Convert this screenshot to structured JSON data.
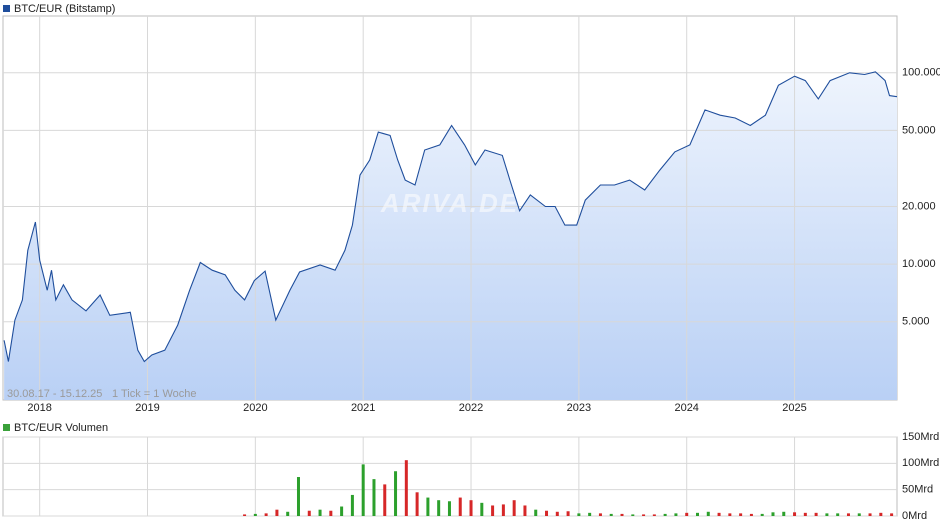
{
  "chart_data": [
    {
      "type": "area",
      "title": "BTC/EUR (Bitstamp)",
      "color": "#1f4e9c",
      "log_scale": true,
      "grid": true,
      "date_range": "30.08.17 - 15.12.25",
      "tick_note": "1 Tick = 1 Woche",
      "watermark": "ARIVA.DE",
      "xlim": [
        2017.66,
        2025.95
      ],
      "xticks": [
        2018,
        2019,
        2020,
        2021,
        2022,
        2023,
        2024,
        2025
      ],
      "ylim": [
        1950,
        198000
      ],
      "yticks": [
        {
          "value": 5000,
          "label": "5.000"
        },
        {
          "value": 10000,
          "label": "10.000"
        },
        {
          "value": 20000,
          "label": "20.000"
        },
        {
          "value": 50000,
          "label": "50.000"
        },
        {
          "value": 100000,
          "label": "100.000"
        }
      ],
      "x": [
        2017.67,
        2017.71,
        2017.77,
        2017.84,
        2017.89,
        2017.96,
        2018.0,
        2018.07,
        2018.11,
        2018.15,
        2018.22,
        2018.3,
        2018.43,
        2018.56,
        2018.65,
        2018.84,
        2018.91,
        2018.97,
        2019.04,
        2019.16,
        2019.28,
        2019.39,
        2019.49,
        2019.6,
        2019.72,
        2019.81,
        2019.9,
        2019.99,
        2020.09,
        2020.19,
        2020.32,
        2020.41,
        2020.6,
        2020.74,
        2020.83,
        2020.9,
        2020.97,
        2021.06,
        2021.14,
        2021.25,
        2021.32,
        2021.39,
        2021.48,
        2021.57,
        2021.71,
        2021.82,
        2021.94,
        2022.04,
        2022.13,
        2022.29,
        2022.36,
        2022.45,
        2022.55,
        2022.69,
        2022.78,
        2022.87,
        2022.98,
        2023.06,
        2023.2,
        2023.33,
        2023.47,
        2023.61,
        2023.75,
        2023.89,
        2024.03,
        2024.17,
        2024.31,
        2024.45,
        2024.59,
        2024.73,
        2024.85,
        2025.0,
        2025.1,
        2025.22,
        2025.33,
        2025.51,
        2025.65,
        2025.75,
        2025.84,
        2025.88,
        2025.95
      ],
      "values": [
        4000,
        3100,
        5100,
        6500,
        11800,
        16600,
        10500,
        7300,
        9300,
        6500,
        7800,
        6500,
        5700,
        6900,
        5400,
        5600,
        3550,
        3100,
        3350,
        3550,
        4800,
        7300,
        10200,
        9300,
        8800,
        7300,
        6500,
        8200,
        9200,
        5100,
        7300,
        9100,
        9900,
        9300,
        11800,
        16000,
        29200,
        35000,
        49000,
        47000,
        35000,
        27500,
        25900,
        39500,
        42000,
        53000,
        42000,
        33000,
        39500,
        37000,
        27500,
        19000,
        23000,
        20000,
        20000,
        16000,
        16000,
        21600,
        25900,
        25900,
        27500,
        24400,
        31000,
        38600,
        42000,
        64000,
        60000,
        58000,
        53000,
        60000,
        86000,
        96000,
        91000,
        73000,
        91000,
        100000,
        98000,
        101000,
        91000,
        76000,
        75000
      ]
    },
    {
      "type": "bar",
      "title": "BTC/EUR Volumen",
      "grid": true,
      "xlim": [
        2017.66,
        2025.95
      ],
      "xticks": [
        2018,
        2019,
        2020,
        2021,
        2022,
        2023,
        2024,
        2025
      ],
      "ylim": [
        0,
        150
      ],
      "yticks": [
        {
          "value": 0,
          "label": "0Mrd"
        },
        {
          "value": 50,
          "label": "50Mrd"
        },
        {
          "value": 100,
          "label": "100Mrd"
        },
        {
          "value": 150,
          "label": "150Mrd"
        }
      ],
      "x": [
        2019.9,
        2020.0,
        2020.1,
        2020.2,
        2020.3,
        2020.4,
        2020.5,
        2020.6,
        2020.7,
        2020.8,
        2020.9,
        2021.0,
        2021.1,
        2021.2,
        2021.3,
        2021.4,
        2021.5,
        2021.6,
        2021.7,
        2021.8,
        2021.9,
        2022.0,
        2022.1,
        2022.2,
        2022.3,
        2022.4,
        2022.5,
        2022.6,
        2022.7,
        2022.8,
        2022.9,
        2023.0,
        2023.1,
        2023.2,
        2023.3,
        2023.4,
        2023.5,
        2023.6,
        2023.7,
        2023.8,
        2023.9,
        2024.0,
        2024.1,
        2024.2,
        2024.3,
        2024.4,
        2024.5,
        2024.6,
        2024.7,
        2024.8,
        2024.9,
        2025.0,
        2025.1,
        2025.2,
        2025.3,
        2025.4,
        2025.5,
        2025.6,
        2025.7,
        2025.8,
        2025.9
      ],
      "values": [
        3,
        4,
        5,
        12,
        8,
        74,
        10,
        12,
        10,
        18,
        40,
        98,
        70,
        60,
        85,
        106,
        45,
        35,
        30,
        28,
        35,
        30,
        25,
        20,
        22,
        30,
        20,
        12,
        10,
        8,
        9,
        5,
        6,
        5,
        4,
        4,
        3,
        3,
        3,
        4,
        5,
        6,
        6,
        8,
        6,
        5,
        5,
        4,
        4,
        7,
        8,
        7,
        6,
        6,
        5,
        5,
        5,
        5,
        5,
        6,
        5
      ],
      "colors": [
        "#d62728",
        "#2ca02c",
        "#d62728",
        "#d62728",
        "#2ca02c",
        "#2ca02c",
        "#d62728",
        "#2ca02c",
        "#d62728",
        "#2ca02c",
        "#2ca02c",
        "#2ca02c",
        "#2ca02c",
        "#d62728",
        "#2ca02c",
        "#d62728",
        "#d62728",
        "#2ca02c",
        "#2ca02c",
        "#2ca02c",
        "#d62728",
        "#d62728",
        "#2ca02c",
        "#d62728",
        "#d62728",
        "#d62728",
        "#d62728",
        "#2ca02c",
        "#d62728",
        "#d62728",
        "#d62728",
        "#2ca02c",
        "#2ca02c",
        "#d62728",
        "#2ca02c",
        "#d62728",
        "#2ca02c",
        "#d62728",
        "#d62728",
        "#2ca02c",
        "#2ca02c",
        "#d62728",
        "#2ca02c",
        "#2ca02c",
        "#d62728",
        "#d62728",
        "#d62728",
        "#d62728",
        "#2ca02c",
        "#2ca02c",
        "#2ca02c",
        "#d62728",
        "#d62728",
        "#d62728",
        "#2ca02c",
        "#2ca02c",
        "#d62728",
        "#2ca02c",
        "#d62728",
        "#d62728",
        "#d62728"
      ]
    }
  ]
}
